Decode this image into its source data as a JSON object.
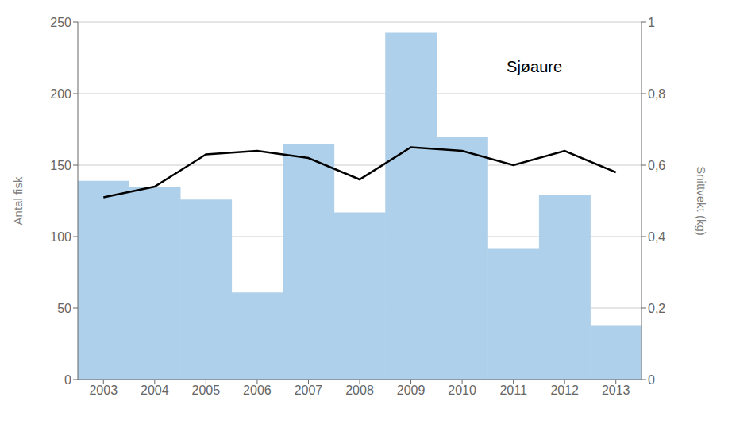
{
  "chart_data": {
    "type": "bar",
    "categories": [
      "2003",
      "2004",
      "2005",
      "2006",
      "2007",
      "2008",
      "2009",
      "2010",
      "2011",
      "2012",
      "2013"
    ],
    "series": [
      {
        "type": "bar",
        "color": "#afd0ea",
        "values": [
          139,
          135,
          126,
          61,
          165,
          117,
          243,
          170,
          92,
          129,
          38
        ]
      },
      {
        "type": "line",
        "color": "#000000",
        "axis": "y2",
        "values": [
          0.51,
          0.54,
          0.63,
          0.64,
          0.62,
          0.56,
          0.65,
          0.64,
          0.6,
          0.64,
          0.58
        ]
      }
    ],
    "ylabel": "Antal fisk",
    "y2label": "Snittvekt (kg)",
    "ylim": [
      0,
      250
    ],
    "yticks": [
      0,
      50,
      100,
      150,
      200,
      250
    ],
    "y2lim": [
      0,
      1.0
    ],
    "y2ticks": [
      0,
      {
        "value": 0.2,
        "label": "0,2"
      },
      {
        "value": 0.4,
        "label": "0,4"
      },
      {
        "value": 0.6,
        "label": "0,6"
      },
      {
        "value": 0.8,
        "label": "0,8"
      },
      1.0
    ],
    "grid": true,
    "annotation": "Sjøaure"
  }
}
